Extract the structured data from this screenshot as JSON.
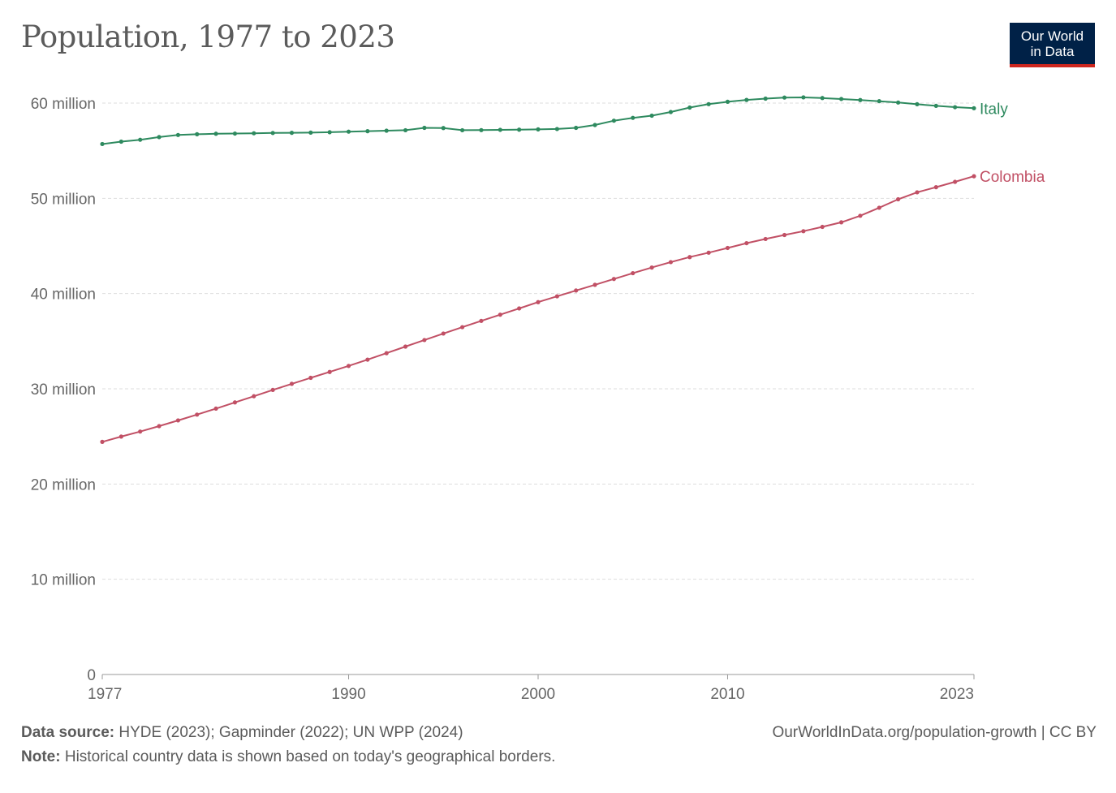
{
  "title": "Population, 1977 to 2023",
  "logo": {
    "line1": "Our World",
    "line2": "in Data"
  },
  "footer": {
    "source_label": "Data source:",
    "source_text": "HYDE (2023); Gapminder (2022); UN WPP (2024)",
    "note_label": "Note:",
    "note_text": "Historical country data is shown based on today's geographical borders.",
    "url": "OurWorldInData.org/population-growth | CC BY"
  },
  "chart_data": {
    "type": "line",
    "title": "Population, 1977 to 2023",
    "xlabel": "",
    "ylabel": "",
    "xlim": [
      1977,
      2023
    ],
    "ylim": [
      0,
      60000000
    ],
    "y_ticks": [
      {
        "value": 0,
        "label": "0"
      },
      {
        "value": 10000000,
        "label": "10 million"
      },
      {
        "value": 20000000,
        "label": "20 million"
      },
      {
        "value": 30000000,
        "label": "30 million"
      },
      {
        "value": 40000000,
        "label": "40 million"
      },
      {
        "value": 50000000,
        "label": "50 million"
      },
      {
        "value": 60000000,
        "label": "60 million"
      }
    ],
    "x_ticks": [
      {
        "value": 1977,
        "label": "1977"
      },
      {
        "value": 1990,
        "label": "1990"
      },
      {
        "value": 2000,
        "label": "2000"
      },
      {
        "value": 2010,
        "label": "2010"
      },
      {
        "value": 2023,
        "label": "2023"
      }
    ],
    "grid": "horizontal dashed",
    "legend": "labels at line ends (right)",
    "x": [
      1977,
      1978,
      1979,
      1980,
      1981,
      1982,
      1983,
      1984,
      1985,
      1986,
      1987,
      1988,
      1989,
      1990,
      1991,
      1992,
      1993,
      1994,
      1995,
      1996,
      1997,
      1998,
      1999,
      2000,
      2001,
      2002,
      2003,
      2004,
      2005,
      2006,
      2007,
      2008,
      2009,
      2010,
      2011,
      2012,
      2013,
      2014,
      2015,
      2016,
      2017,
      2018,
      2019,
      2020,
      2021,
      2022,
      2023
    ],
    "series": [
      {
        "name": "Italy",
        "color": "#2e8a5f",
        "values": [
          55700000,
          55950000,
          56150000,
          56430000,
          56650000,
          56730000,
          56780000,
          56800000,
          56830000,
          56860000,
          56880000,
          56900000,
          56940000,
          57000000,
          57050000,
          57100000,
          57150000,
          57400000,
          57380000,
          57150000,
          57160000,
          57190000,
          57210000,
          57240000,
          57280000,
          57400000,
          57700000,
          58150000,
          58450000,
          58680000,
          59060000,
          59530000,
          59890000,
          60140000,
          60330000,
          60470000,
          60580000,
          60600000,
          60530000,
          60430000,
          60320000,
          60200000,
          60060000,
          59880000,
          59710000,
          59570000,
          59460000
        ]
      },
      {
        "name": "Colombia",
        "color": "#c15065",
        "values": [
          24430000,
          24980000,
          25510000,
          26080000,
          26680000,
          27290000,
          27920000,
          28570000,
          29220000,
          29880000,
          30520000,
          31150000,
          31770000,
          32400000,
          33060000,
          33740000,
          34430000,
          35120000,
          35800000,
          36470000,
          37130000,
          37780000,
          38440000,
          39100000,
          39710000,
          40320000,
          40920000,
          41530000,
          42140000,
          42730000,
          43300000,
          43830000,
          44290000,
          44790000,
          45290000,
          45730000,
          46150000,
          46550000,
          47000000,
          47480000,
          48170000,
          49010000,
          49900000,
          50630000,
          51170000,
          51730000,
          52320000
        ]
      }
    ]
  }
}
